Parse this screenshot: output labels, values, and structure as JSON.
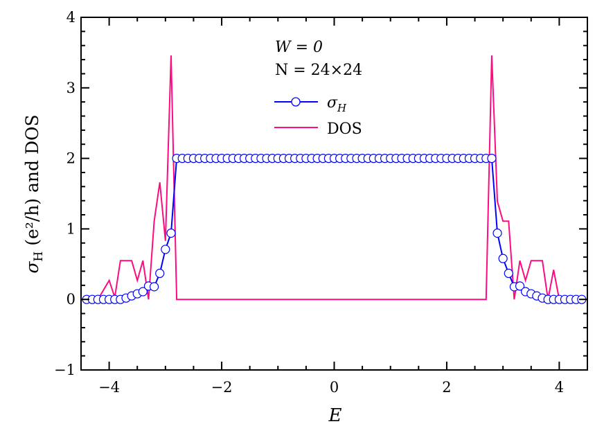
{
  "chart_data": {
    "type": "line",
    "xlabel": "E",
    "ylabel": {
      "symbol": "σ",
      "sub": "H",
      "rest": " (e²/h) and DOS"
    },
    "xlim": [
      -4.5,
      4.5
    ],
    "ylim": [
      -1,
      4
    ],
    "x_ticks": [
      -4,
      -2,
      0,
      2,
      4
    ],
    "x_tick_labels": [
      "−4",
      "−2",
      "0",
      "2",
      "4"
    ],
    "y_ticks": [
      -1,
      0,
      1,
      2,
      3,
      4
    ],
    "y_tick_labels": [
      "−1",
      "0",
      "1",
      "2",
      "3",
      "4"
    ],
    "grid": false,
    "legend_placement": "top-center",
    "annotations": [
      "W = 0",
      "N = 24×24"
    ],
    "colors": {
      "sigma": "#0000ff",
      "dos": "#ff0a80"
    },
    "series": [
      {
        "name": "σ_H",
        "legend_symbol": "σ",
        "legend_sub": "H",
        "marker": "open-circle",
        "x": [
          -4.4,
          -4.3,
          -4.2,
          -4.1,
          -4.0,
          -3.9,
          -3.8,
          -3.7,
          -3.6,
          -3.5,
          -3.4,
          -3.3,
          -3.2,
          -3.1,
          -3.0,
          -2.9,
          -2.8,
          -2.7,
          -2.6,
          -2.5,
          -2.4,
          -2.3,
          -2.2,
          -2.1,
          -2.0,
          -1.9,
          -1.8,
          -1.7,
          -1.6,
          -1.5,
          -1.4,
          -1.3,
          -1.2,
          -1.1,
          -1.0,
          -0.9,
          -0.8,
          -0.7,
          -0.6,
          -0.5,
          -0.4,
          -0.3,
          -0.2,
          -0.1,
          0.0,
          0.1,
          0.2,
          0.3,
          0.4,
          0.5,
          0.6,
          0.7,
          0.8,
          0.9,
          1.0,
          1.1,
          1.2,
          1.3,
          1.4,
          1.5,
          1.6,
          1.7,
          1.8,
          1.9,
          2.0,
          2.1,
          2.2,
          2.3,
          2.4,
          2.5,
          2.6,
          2.7,
          2.8,
          2.9,
          3.0,
          3.1,
          3.2,
          3.3,
          3.4,
          3.5,
          3.6,
          3.7,
          3.8,
          3.9,
          4.0,
          4.1,
          4.2,
          4.3,
          4.4
        ],
        "y": [
          0,
          0,
          0,
          0,
          0,
          0,
          0,
          0.02,
          0.05,
          0.08,
          0.11,
          0.19,
          0.18,
          0.37,
          0.71,
          0.94,
          2,
          2,
          2,
          2,
          2,
          2,
          2,
          2,
          2,
          2,
          2,
          2,
          2,
          2,
          2,
          2,
          2,
          2,
          2,
          2,
          2,
          2,
          2,
          2,
          2,
          2,
          2,
          2,
          2,
          2,
          2,
          2,
          2,
          2,
          2,
          2,
          2,
          2,
          2,
          2,
          2,
          2,
          2,
          2,
          2,
          2,
          2,
          2,
          2,
          2,
          2,
          2,
          2,
          2,
          2,
          2,
          2,
          0.94,
          0.58,
          0.37,
          0.18,
          0.19,
          0.11,
          0.08,
          0.05,
          0.02,
          0,
          0,
          0,
          0,
          0,
          0,
          0
        ]
      },
      {
        "name": "DOS",
        "marker": "none",
        "x": [
          -4.5,
          -4.2,
          -4.0,
          -3.9,
          -3.8,
          -3.6,
          -3.5,
          -3.4,
          -3.3,
          -3.2,
          -3.1,
          -3.0,
          -2.9,
          -2.8,
          2.7,
          2.8,
          2.9,
          3.0,
          3.1,
          3.2,
          3.3,
          3.4,
          3.5,
          3.7,
          3.8,
          3.9,
          4.0,
          4.5
        ],
        "y": [
          0,
          0,
          0.27,
          0.03,
          0.55,
          0.55,
          0.27,
          0.55,
          0,
          1.11,
          1.66,
          0.83,
          3.46,
          0,
          0,
          3.46,
          1.39,
          1.11,
          1.11,
          0,
          0.55,
          0.27,
          0.55,
          0.55,
          0,
          0.42,
          0,
          0
        ]
      }
    ]
  }
}
